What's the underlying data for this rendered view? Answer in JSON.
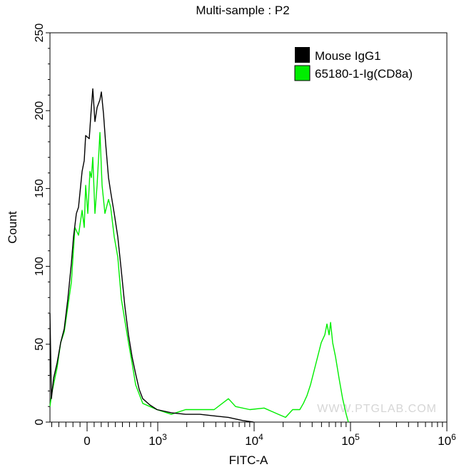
{
  "chart_data": {
    "type": "line",
    "title": "Multi-sample : P2",
    "xlabel": "FITC-A",
    "ylabel": "Count",
    "xscale": "biexponential",
    "xlim": [
      -525,
      1000000
    ],
    "ylim": [
      0,
      250
    ],
    "yticks": [
      0,
      50,
      100,
      150,
      200,
      250
    ],
    "xticks": [
      {
        "value": 0,
        "base": "0",
        "exp": ""
      },
      {
        "value": 1000,
        "base": "10",
        "exp": "3"
      },
      {
        "value": 10000,
        "base": "10",
        "exp": "4"
      },
      {
        "value": 100000,
        "base": "10",
        "exp": "5"
      },
      {
        "value": 1000000,
        "base": "10",
        "exp": "6"
      }
    ],
    "legend_position": "top-right",
    "watermark": "WWW.PTGLAB.COM",
    "series": [
      {
        "name": "Mouse IgG1",
        "color": "#000000",
        "x": [
          -525,
          -505,
          -475,
          -424,
          -374,
          -323,
          -273,
          -222,
          -192,
          -152,
          -121,
          -71,
          -40,
          -20,
          30,
          61,
          81,
          111,
          141,
          182,
          202,
          232,
          263,
          303,
          333,
          384,
          434,
          485,
          535,
          586,
          636,
          687,
          737,
          788,
          889,
          990,
          1383,
          1945,
          2735,
          3847,
          5410,
          7609,
          9840
        ],
        "y": [
          70,
          15,
          28,
          38,
          51,
          60,
          79,
          102,
          119,
          134,
          138,
          161,
          168,
          184,
          182,
          202,
          214,
          193,
          202,
          207,
          212,
          198,
          179,
          157,
          148,
          134,
          119,
          97,
          74,
          56,
          42,
          31,
          21,
          15,
          11,
          8,
          6,
          5,
          5,
          4,
          3,
          1,
          0
        ]
      },
      {
        "name": "65180-1-Ig(CD8a)",
        "color": "#00ee00",
        "x": [
          -525,
          -505,
          -475,
          -424,
          -374,
          -323,
          -273,
          -222,
          -172,
          -121,
          -71,
          -40,
          -20,
          10,
          40,
          61,
          81,
          111,
          141,
          182,
          212,
          253,
          303,
          333,
          384,
          434,
          485,
          535,
          586,
          636,
          687,
          788,
          889,
          990,
          1383,
          1945,
          2735,
          3847,
          5410,
          6417,
          9030,
          12700,
          17860,
          21180,
          25120,
          29790,
          32440,
          35320,
          38460,
          41880,
          45600,
          49670,
          54080,
          56990,
          59950,
          62090,
          65310,
          69870,
          76070,
          82890,
          90290,
          95000
        ],
        "y": [
          10,
          17,
          24,
          35,
          51,
          58,
          74,
          90,
          125,
          120,
          136,
          125,
          152,
          134,
          161,
          157,
          170,
          134,
          152,
          186,
          152,
          134,
          143,
          138,
          119,
          106,
          79,
          65,
          51,
          38,
          24,
          12,
          10,
          8,
          5,
          8,
          8,
          8,
          15,
          10,
          8,
          9,
          5,
          3,
          8,
          8,
          12,
          17,
          24,
          33,
          42,
          51,
          56,
          63,
          56,
          64,
          51,
          42,
          28,
          15,
          5,
          0
        ]
      }
    ]
  }
}
